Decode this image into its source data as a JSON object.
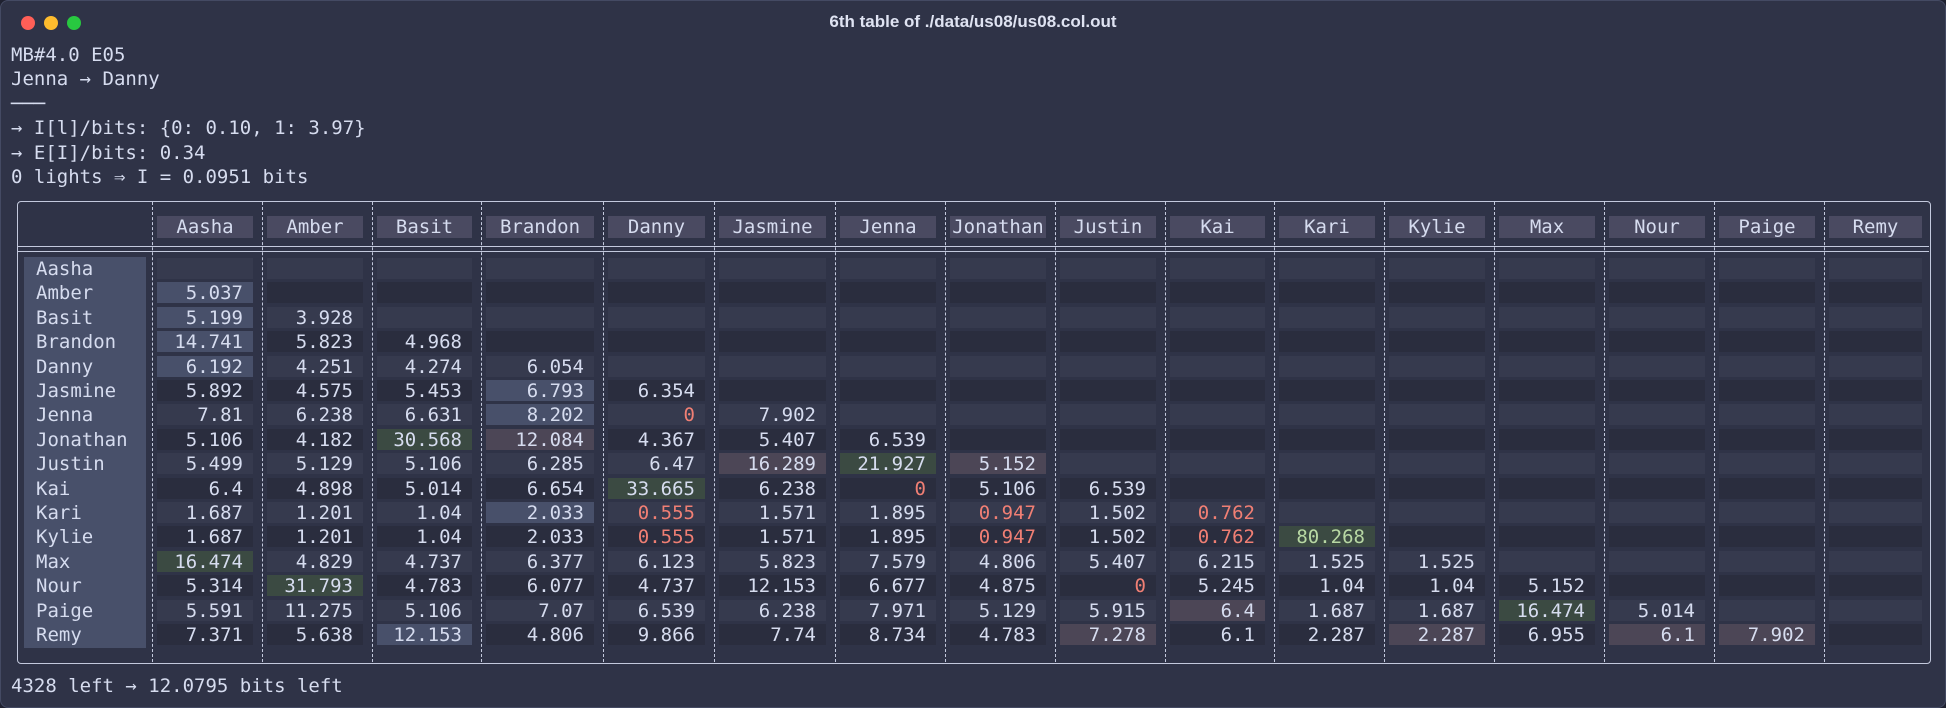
{
  "window": {
    "title": "6th table of ./data/us08/us08.col.out",
    "lights": [
      {
        "name": "close",
        "color": "#ff5f57"
      },
      {
        "name": "minimize",
        "color": "#febc2e"
      },
      {
        "name": "maximize",
        "color": "#28c840"
      }
    ]
  },
  "info_lines": [
    "MB#4.0 E05",
    "Jenna → Danny",
    "───",
    "→ I[l]/bits: {0: 0.10, 1: 3.97}",
    "→ E[I]/bits: 0.34",
    "0 lights ⇒ I = 0.0951 bits"
  ],
  "footer": "4328 left → 12.0795 bits left",
  "colors": {
    "text": "#d6dcef",
    "red": "#f07f74",
    "header_bg": "#4a4a61",
    "row_label_bg": "#48506a",
    "stripe_a": "#2a2d3e",
    "stripe_b": "#363a4e",
    "hl_blue": "#48506a",
    "hl_green": "#3b4a42",
    "hl_pink": "#4c4656",
    "green_text": "#b7d7a3"
  },
  "table": {
    "columns": [
      "Aasha",
      "Amber",
      "Basit",
      "Brandon",
      "Danny",
      "Jasmine",
      "Jenna",
      "Jonathan",
      "Justin",
      "Kai",
      "Kari",
      "Kylie",
      "Max",
      "Nour",
      "Paige",
      "Remy"
    ],
    "rows": [
      {
        "label": "Aasha",
        "values": []
      },
      {
        "label": "Amber",
        "values": [
          "5.037"
        ]
      },
      {
        "label": "Basit",
        "values": [
          "5.199",
          "3.928"
        ]
      },
      {
        "label": "Brandon",
        "values": [
          "14.741",
          "5.823",
          "4.968"
        ]
      },
      {
        "label": "Danny",
        "values": [
          "6.192",
          "4.251",
          "4.274",
          "6.054"
        ]
      },
      {
        "label": "Jasmine",
        "values": [
          "5.892",
          "4.575",
          "5.453",
          "6.793",
          "6.354"
        ]
      },
      {
        "label": "Jenna",
        "values": [
          "7.81",
          "6.238",
          "6.631",
          "8.202",
          "0",
          "7.902"
        ]
      },
      {
        "label": "Jonathan",
        "values": [
          "5.106",
          "4.182",
          "30.568",
          "12.084",
          "4.367",
          "5.407",
          "6.539"
        ]
      },
      {
        "label": "Justin",
        "values": [
          "5.499",
          "5.129",
          "5.106",
          "6.285",
          "6.47",
          "16.289",
          "21.927",
          "5.152"
        ]
      },
      {
        "label": "Kai",
        "values": [
          "6.4",
          "4.898",
          "5.014",
          "6.654",
          "33.665",
          "6.238",
          "0",
          "5.106",
          "6.539"
        ]
      },
      {
        "label": "Kari",
        "values": [
          "1.687",
          "1.201",
          "1.04",
          "2.033",
          "0.555",
          "1.571",
          "1.895",
          "0.947",
          "1.502",
          "0.762"
        ]
      },
      {
        "label": "Kylie",
        "values": [
          "1.687",
          "1.201",
          "1.04",
          "2.033",
          "0.555",
          "1.571",
          "1.895",
          "0.947",
          "1.502",
          "0.762",
          "80.268"
        ]
      },
      {
        "label": "Max",
        "values": [
          "16.474",
          "4.829",
          "4.737",
          "6.377",
          "6.123",
          "5.823",
          "7.579",
          "4.806",
          "5.407",
          "6.215",
          "1.525",
          "1.525"
        ]
      },
      {
        "label": "Nour",
        "values": [
          "5.314",
          "31.793",
          "4.783",
          "6.077",
          "4.737",
          "12.153",
          "6.677",
          "4.875",
          "0",
          "5.245",
          "1.04",
          "1.04",
          "5.152"
        ]
      },
      {
        "label": "Paige",
        "values": [
          "5.591",
          "11.275",
          "5.106",
          "7.07",
          "6.539",
          "6.238",
          "7.971",
          "5.129",
          "5.915",
          "6.4",
          "1.687",
          "1.687",
          "16.474",
          "5.014"
        ]
      },
      {
        "label": "Remy",
        "values": [
          "7.371",
          "5.638",
          "12.153",
          "4.806",
          "9.866",
          "7.74",
          "8.734",
          "4.783",
          "7.278",
          "6.1",
          "2.287",
          "2.287",
          "6.955",
          "6.1",
          "7.902"
        ]
      }
    ],
    "highlights": [
      {
        "row": 1,
        "col": 0,
        "kind": "blue"
      },
      {
        "row": 2,
        "col": 0,
        "kind": "blue"
      },
      {
        "row": 3,
        "col": 0,
        "kind": "blue"
      },
      {
        "row": 4,
        "col": 0,
        "kind": "blue"
      },
      {
        "row": 5,
        "col": 3,
        "kind": "blue"
      },
      {
        "row": 6,
        "col": 3,
        "kind": "blue"
      },
      {
        "row": 7,
        "col": 3,
        "kind": "pink"
      },
      {
        "row": 7,
        "col": 2,
        "kind": "green"
      },
      {
        "row": 8,
        "col": 5,
        "kind": "pink"
      },
      {
        "row": 8,
        "col": 6,
        "kind": "green"
      },
      {
        "row": 8,
        "col": 7,
        "kind": "pink"
      },
      {
        "row": 9,
        "col": 4,
        "kind": "green"
      },
      {
        "row": 10,
        "col": 3,
        "kind": "blue"
      },
      {
        "row": 11,
        "col": 10,
        "kind": "green"
      },
      {
        "row": 12,
        "col": 0,
        "kind": "green"
      },
      {
        "row": 13,
        "col": 1,
        "kind": "green"
      },
      {
        "row": 14,
        "col": 9,
        "kind": "pink"
      },
      {
        "row": 14,
        "col": 12,
        "kind": "green"
      },
      {
        "row": 15,
        "col": 2,
        "kind": "blue"
      },
      {
        "row": 15,
        "col": 8,
        "kind": "pink"
      },
      {
        "row": 15,
        "col": 11,
        "kind": "pink"
      },
      {
        "row": 15,
        "col": 13,
        "kind": "pink"
      },
      {
        "row": 15,
        "col": 14,
        "kind": "pink"
      }
    ],
    "red_cells": [
      {
        "row": 6,
        "col": 4
      },
      {
        "row": 9,
        "col": 6
      },
      {
        "row": 10,
        "col": 4
      },
      {
        "row": 10,
        "col": 7
      },
      {
        "row": 10,
        "col": 9
      },
      {
        "row": 11,
        "col": 4
      },
      {
        "row": 11,
        "col": 7
      },
      {
        "row": 11,
        "col": 9
      },
      {
        "row": 13,
        "col": 8
      }
    ],
    "green_text_cells": [
      {
        "row": 11,
        "col": 10
      }
    ]
  }
}
